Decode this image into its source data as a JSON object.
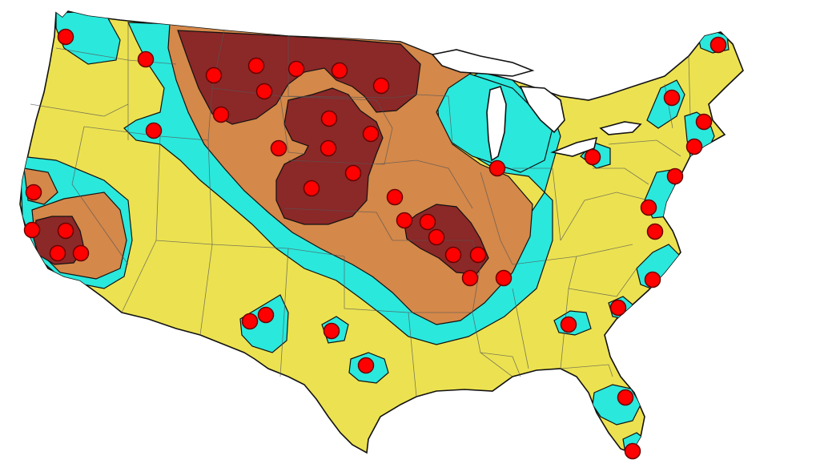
{
  "map": {
    "colors": {
      "background": "#ffffff",
      "land_low": "#ece251",
      "zone_cyan": "#2ae8dc",
      "zone_orange": "#d4884a",
      "zone_dark": "#8b2828",
      "marker": "#ff0000",
      "outline": "#111111",
      "state_lines": "#555555",
      "lakes": "#ffffff"
    },
    "marker_count": 52
  }
}
